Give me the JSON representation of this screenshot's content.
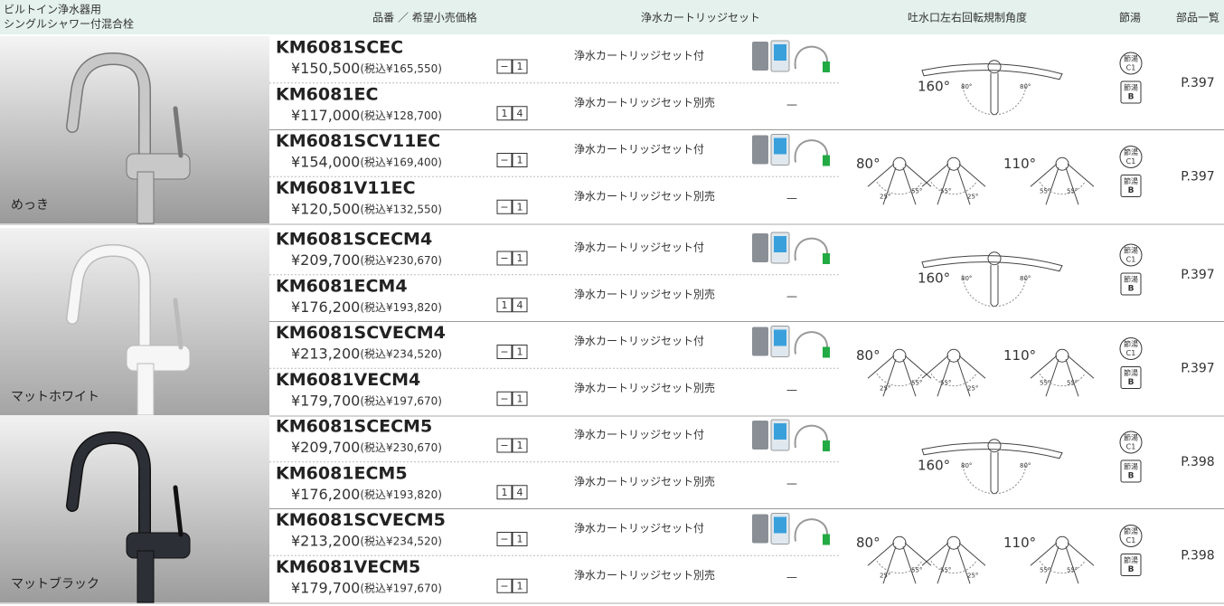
{
  "header": {
    "title_lines": [
      "ビルトイン浄水器用",
      "シングルシャワー付混合栓"
    ],
    "columns": [
      "品番 ／ 希望小売価格",
      "浄水カートリッジセット",
      "吐水口左右回転規制角度",
      "節湯",
      "部品一覧"
    ]
  },
  "groups": [
    {
      "finish": "めっき",
      "subgroups": [
        {
          "angle_labels": [
            "160°",
            "80°",
            "80°"
          ],
          "setsuyu": [
            "節湯",
            "C1",
            "節湯",
            "B"
          ],
          "page": "P.397",
          "products": [
            {
              "code": "KM6081SCEC",
              "price": "¥150,500",
              "tax": "(税込¥165,550)",
              "icons": [
                "−",
                "1"
              ],
              "cartridge": "浄水カートリッジセット付"
            },
            {
              "code": "KM6081EC",
              "price": "¥117,000",
              "tax": "(税込¥128,700)",
              "icons": [
                "1",
                "4"
              ],
              "cartridge": "浄水カートリッジセット別売",
              "dash": "—"
            }
          ]
        },
        {
          "angle_labels": [
            "80°",
            "25°",
            "55°",
            "55°",
            "25°",
            "110°",
            "55°",
            "55°"
          ],
          "setsuyu": [
            "節湯",
            "C1",
            "節湯",
            "B"
          ],
          "page": "P.397",
          "products": [
            {
              "code": "KM6081SCV11EC",
              "price": "¥154,000",
              "tax": "(税込¥169,400)",
              "icons": [
                "−",
                "1"
              ],
              "cartridge": "浄水カートリッジセット付"
            },
            {
              "code": "KM6081V11EC",
              "price": "¥120,500",
              "tax": "(税込¥132,550)",
              "icons": [
                "−",
                "1"
              ],
              "cartridge": "浄水カートリッジセット別売",
              "dash": "—"
            }
          ]
        }
      ]
    },
    {
      "finish": "マットホワイト",
      "subgroups": [
        {
          "angle_labels": [
            "160°",
            "80°",
            "80°"
          ],
          "setsuyu": [
            "節湯",
            "C1",
            "節湯",
            "B"
          ],
          "page": "P.397",
          "products": [
            {
              "code": "KM6081SCECM4",
              "price": "¥209,700",
              "tax": "(税込¥230,670)",
              "icons": [
                "−",
                "1"
              ],
              "cartridge": "浄水カートリッジセット付"
            },
            {
              "code": "KM6081ECM4",
              "price": "¥176,200",
              "tax": "(税込¥193,820)",
              "icons": [
                "1",
                "4"
              ],
              "cartridge": "浄水カートリッジセット別売",
              "dash": "—"
            }
          ]
        },
        {
          "angle_labels": [
            "80°",
            "25°",
            "55°",
            "55°",
            "25°",
            "110°",
            "55°",
            "55°"
          ],
          "setsuyu": [
            "節湯",
            "C1",
            "節湯",
            "B"
          ],
          "page": "P.397",
          "products": [
            {
              "code": "KM6081SCVECM4",
              "price": "¥213,200",
              "tax": "(税込¥234,520)",
              "icons": [
                "−",
                "1"
              ],
              "cartridge": "浄水カートリッジセット付"
            },
            {
              "code": "KM6081VECM4",
              "price": "¥179,700",
              "tax": "(税込¥197,670)",
              "icons": [
                "−",
                "1"
              ],
              "cartridge": "浄水カートリッジセット別売",
              "dash": "—"
            }
          ]
        }
      ]
    },
    {
      "finish": "マットブラック",
      "subgroups": [
        {
          "angle_labels": [
            "160°",
            "80°",
            "80°"
          ],
          "setsuyu": [
            "節湯",
            "C1",
            "節湯",
            "B"
          ],
          "page": "P.398",
          "products": [
            {
              "code": "KM6081SCECM5",
              "price": "¥209,700",
              "tax": "(税込¥230,670)",
              "icons": [
                "−",
                "1"
              ],
              "cartridge": "浄水カートリッジセット付"
            },
            {
              "code": "KM6081ECM5",
              "price": "¥176,200",
              "tax": "(税込¥193,820)",
              "icons": [
                "1",
                "4"
              ],
              "cartridge": "浄水カートリッジセット別売",
              "dash": "—"
            }
          ]
        },
        {
          "angle_labels": [
            "80°",
            "25°",
            "55°",
            "55°",
            "25°",
            "110°",
            "55°",
            "55°"
          ],
          "setsuyu": [
            "節湯",
            "C1",
            "節湯",
            "B"
          ],
          "page": "P.398",
          "products": [
            {
              "code": "KM6081SCVECM5",
              "price": "¥213,200",
              "tax": "(税込¥234,520)",
              "icons": [
                "−",
                "1"
              ],
              "cartridge": "浄水カートリッジセット付"
            },
            {
              "code": "KM6081VECM5",
              "price": "¥179,700",
              "tax": "(税込¥197,670)",
              "icons": [
                "−",
                "1"
              ],
              "cartridge": "浄水カートリッジセット別売",
              "dash": "—"
            }
          ]
        }
      ]
    }
  ]
}
